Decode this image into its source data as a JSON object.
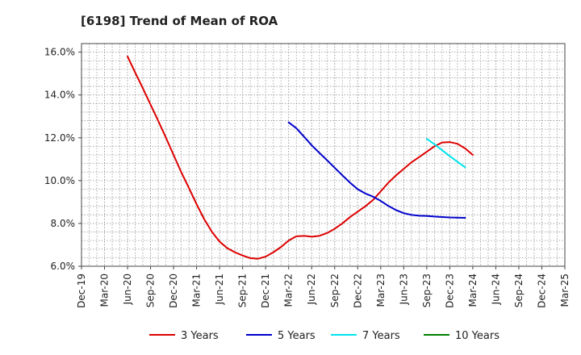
{
  "chart_data": {
    "type": "line",
    "title": "[6198]  Trend of Mean of ROA",
    "xlabel": "",
    "ylabel": "",
    "x_categories": [
      "Dec-19",
      "Mar-20",
      "Jun-20",
      "Sep-20",
      "Dec-20",
      "Mar-21",
      "Jun-21",
      "Sep-21",
      "Dec-21",
      "Mar-22",
      "Jun-22",
      "Sep-22",
      "Dec-22",
      "Mar-23",
      "Jun-23",
      "Sep-23",
      "Dec-23",
      "Mar-24",
      "Jun-24",
      "Sep-24",
      "Dec-24",
      "Mar-25"
    ],
    "ylim": [
      6.0,
      16.4
    ],
    "y_ticks": [
      6.0,
      8.0,
      10.0,
      12.0,
      14.0,
      16.0
    ],
    "y_tick_labels": [
      "6.0%",
      "8.0%",
      "10.0%",
      "12.0%",
      "14.0%",
      "16.0%"
    ],
    "grid": true,
    "legend_position": "bottom",
    "series": [
      {
        "name": "3 Years",
        "color": "#dd0000",
        "points": [
          [
            2,
            15.8
          ],
          [
            2.33,
            15.05
          ],
          [
            2.67,
            14.3
          ],
          [
            3,
            13.55
          ],
          [
            3.33,
            12.8
          ],
          [
            3.67,
            12.0
          ],
          [
            4,
            11.2
          ],
          [
            4.33,
            10.4
          ],
          [
            4.67,
            9.65
          ],
          [
            5,
            8.9
          ],
          [
            5.33,
            8.2
          ],
          [
            5.67,
            7.6
          ],
          [
            6,
            7.15
          ],
          [
            6.33,
            6.85
          ],
          [
            6.67,
            6.65
          ],
          [
            7,
            6.5
          ],
          [
            7.33,
            6.38
          ],
          [
            7.67,
            6.35
          ],
          [
            8,
            6.45
          ],
          [
            8.33,
            6.65
          ],
          [
            8.67,
            6.9
          ],
          [
            9,
            7.2
          ],
          [
            9.33,
            7.4
          ],
          [
            9.67,
            7.42
          ],
          [
            10,
            7.38
          ],
          [
            10.33,
            7.42
          ],
          [
            10.67,
            7.55
          ],
          [
            11,
            7.75
          ],
          [
            11.33,
            8.0
          ],
          [
            11.67,
            8.3
          ],
          [
            12,
            8.55
          ],
          [
            12.33,
            8.8
          ],
          [
            12.67,
            9.1
          ],
          [
            13,
            9.5
          ],
          [
            13.33,
            9.9
          ],
          [
            13.67,
            10.25
          ],
          [
            14,
            10.55
          ],
          [
            14.33,
            10.85
          ],
          [
            14.67,
            11.1
          ],
          [
            15,
            11.35
          ],
          [
            15.33,
            11.6
          ],
          [
            15.67,
            11.78
          ],
          [
            16,
            11.8
          ],
          [
            16.33,
            11.72
          ],
          [
            16.67,
            11.5
          ],
          [
            17,
            11.2
          ]
        ]
      },
      {
        "name": "5 Years",
        "color": "#0000cc",
        "points": [
          [
            9,
            12.72
          ],
          [
            9.33,
            12.45
          ],
          [
            9.67,
            12.05
          ],
          [
            10,
            11.65
          ],
          [
            10.33,
            11.3
          ],
          [
            10.67,
            10.95
          ],
          [
            11,
            10.6
          ],
          [
            11.33,
            10.25
          ],
          [
            11.67,
            9.9
          ],
          [
            12,
            9.6
          ],
          [
            12.33,
            9.4
          ],
          [
            12.67,
            9.25
          ],
          [
            13,
            9.05
          ],
          [
            13.33,
            8.82
          ],
          [
            13.67,
            8.62
          ],
          [
            14,
            8.48
          ],
          [
            14.33,
            8.4
          ],
          [
            14.67,
            8.36
          ],
          [
            15,
            8.35
          ],
          [
            15.33,
            8.32
          ],
          [
            15.67,
            8.3
          ],
          [
            16,
            8.28
          ],
          [
            16.33,
            8.27
          ],
          [
            16.67,
            8.26
          ]
        ]
      },
      {
        "name": "7 Years",
        "color": "#00e5ee",
        "points": [
          [
            15,
            11.95
          ],
          [
            15.33,
            11.7
          ],
          [
            15.67,
            11.42
          ],
          [
            16,
            11.14
          ],
          [
            16.33,
            10.88
          ],
          [
            16.67,
            10.62
          ]
        ]
      },
      {
        "name": "10 Years",
        "color": "#008000",
        "points": []
      }
    ]
  }
}
